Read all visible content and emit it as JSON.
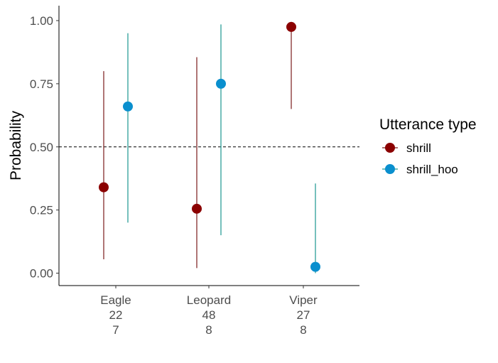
{
  "chart_data": {
    "type": "scatter",
    "ylabel": "Probability",
    "xlabel": "",
    "ylim": [
      -0.05,
      1.06
    ],
    "yticks": [
      "0.00",
      "0.25",
      "0.50",
      "0.75",
      "1.00"
    ],
    "reference_line": {
      "y": 0.5,
      "style": "dashed"
    },
    "categories": [
      {
        "name": "Eagle",
        "line2": "22",
        "line3": "7"
      },
      {
        "name": "Leopard",
        "line2": "48",
        "line3": "8"
      },
      {
        "name": "Viper",
        "line2": "27",
        "line3": "8"
      }
    ],
    "legend": {
      "title": "Utterance type",
      "position": "right"
    },
    "series": [
      {
        "name": "shrill",
        "color": "#8b0000",
        "line_color": "#7a1a1a",
        "values": [
          0.34,
          0.255,
          0.975
        ],
        "lower": [
          0.055,
          0.02,
          0.65
        ],
        "upper": [
          0.8,
          0.855,
          0.995
        ]
      },
      {
        "name": "shrill_hoo",
        "color": "#0a8fce",
        "line_color": "#1a9690",
        "values": [
          0.66,
          0.75,
          0.025
        ],
        "lower": [
          0.2,
          0.15,
          0.0
        ],
        "upper": [
          0.95,
          0.985,
          0.355
        ]
      }
    ]
  }
}
